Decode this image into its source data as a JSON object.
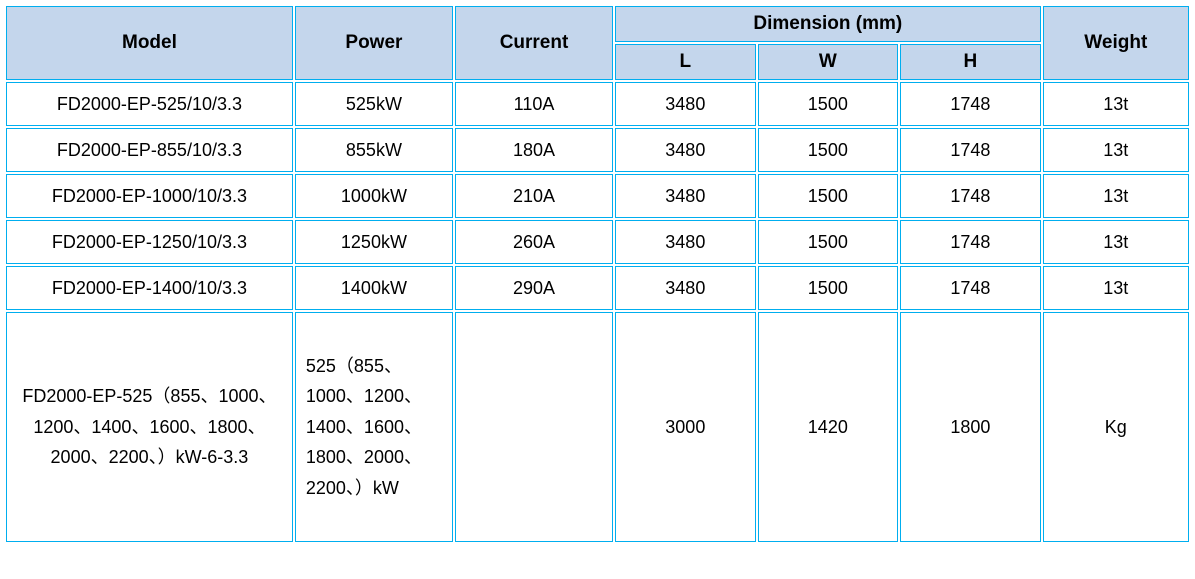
{
  "type": "table",
  "border_color": "#00aeef",
  "header_bg": "#c4d6ec",
  "body_bg": "#ffffff",
  "text_color": "#000000",
  "font_family": "Arial",
  "columns": {
    "model": {
      "label": "Model",
      "width_pct": 24.5
    },
    "power": {
      "label": "Power",
      "width_pct": 13.5
    },
    "current": {
      "label": "Current",
      "width_pct": 13.5
    },
    "dimension_group": {
      "label": "Dimension (mm)"
    },
    "l": {
      "label": "L",
      "width_pct": 12
    },
    "w": {
      "label": "W",
      "width_pct": 12
    },
    "h": {
      "label": "H",
      "width_pct": 12
    },
    "weight": {
      "label": "Weight",
      "width_pct": 12.5
    }
  },
  "rows": [
    {
      "model": "FD2000-EP-525/10/3.3",
      "power": "525kW",
      "current": "110A",
      "l": "3480",
      "w": "1500",
      "h": "1748",
      "weight": "13t"
    },
    {
      "model": "FD2000-EP-855/10/3.3",
      "power": "855kW",
      "current": "180A",
      "l": "3480",
      "w": "1500",
      "h": "1748",
      "weight": "13t"
    },
    {
      "model": "FD2000-EP-1000/10/3.3",
      "power": "1000kW",
      "current": "210A",
      "l": "3480",
      "w": "1500",
      "h": "1748",
      "weight": "13t"
    },
    {
      "model": "FD2000-EP-1250/10/3.3",
      "power": "1250kW",
      "current": "260A",
      "l": "3480",
      "w": "1500",
      "h": "1748",
      "weight": "13t"
    },
    {
      "model": "FD2000-EP-1400/10/3.3",
      "power": "1400kW",
      "current": "290A",
      "l": "3480",
      "w": "1500",
      "h": "1748",
      "weight": "13t"
    }
  ],
  "final_row": {
    "model": "FD2000-EP-525（855、1000、1200、1400、1600、1800、2000、2200、）kW-6-3.3",
    "power": "525（855、1000、1200、1400、1600、1800、2000、2200、）kW",
    "current": "",
    "l": "3000",
    "w": "1420",
    "h": "1800",
    "weight": "Kg"
  }
}
